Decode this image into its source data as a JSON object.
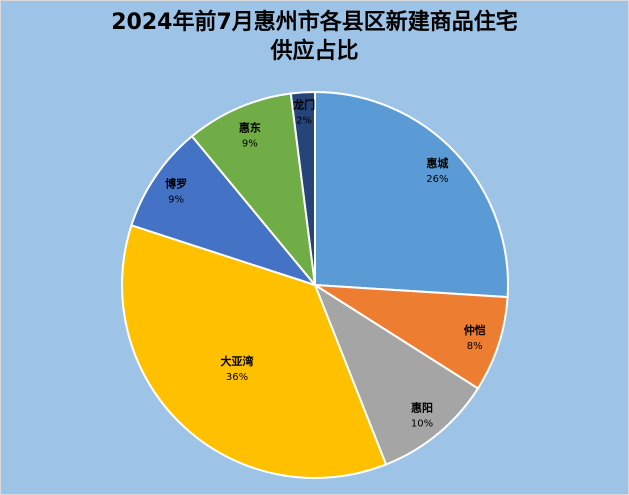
{
  "chart_data": {
    "type": "pie",
    "title_line1": "2024年前7月惠州市各县区新建商品住宅",
    "title_line2": "供应占比",
    "start": "top",
    "direction": "clockwise",
    "slices": [
      {
        "name": "惠城",
        "value": 26,
        "label": "26%",
        "color": "#5b9bd5"
      },
      {
        "name": "仲恺",
        "value": 8,
        "label": "8%",
        "color": "#ed7d31"
      },
      {
        "name": "惠阳",
        "value": 10,
        "label": "10%",
        "color": "#a5a5a5"
      },
      {
        "name": "大亚湾",
        "value": 36,
        "label": "36%",
        "color": "#ffc000"
      },
      {
        "name": "博罗",
        "value": 9,
        "label": "9%",
        "color": "#4472c4"
      },
      {
        "name": "惠东",
        "value": 9,
        "label": "9%",
        "color": "#70ad47"
      },
      {
        "name": "龙门",
        "value": 2,
        "label": "2%",
        "color": "#264478"
      }
    ],
    "legend": "none"
  }
}
